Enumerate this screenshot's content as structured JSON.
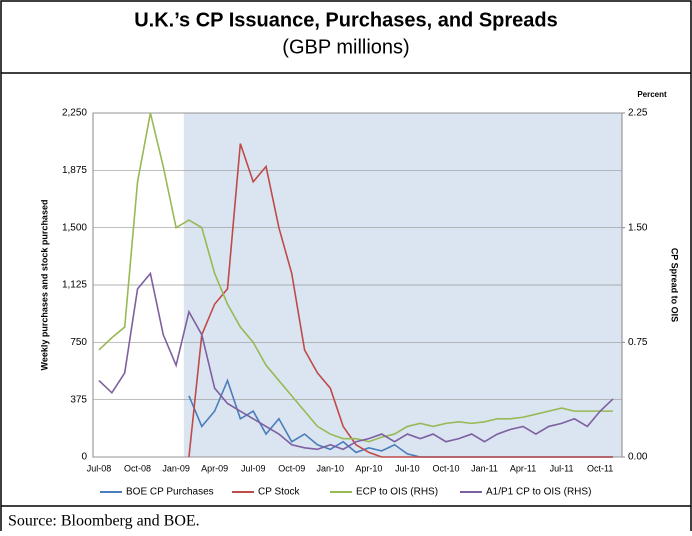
{
  "chart_data": {
    "type": "line",
    "title": "U.K.’s CP Issuance, Purchases, and Spreads",
    "subtitle": "(GBP millions)",
    "y_label": "Weekly purchases and stock purchased",
    "y2_label": "CP Spread to OIS",
    "y2_unit": "Percent",
    "source": "Source: Bloomberg and BOE.",
    "categories": [
      "Jul-08",
      null,
      null,
      "Oct-08",
      null,
      null,
      "Jan-09",
      null,
      null,
      "Apr-09",
      null,
      null,
      "Jul-09",
      null,
      null,
      "Oct-09",
      null,
      null,
      "Jan-10",
      null,
      null,
      "Apr-10",
      null,
      null,
      "Jul-10",
      null,
      null,
      "Oct-10",
      null,
      null,
      "Jan-11",
      null,
      null,
      "Apr-11",
      null,
      null,
      "Jul-11",
      null,
      null,
      "Oct-11",
      null
    ],
    "ylim": [
      0,
      2250
    ],
    "yticks": [
      0,
      375,
      750,
      {
        "value": 1125,
        "label": "1,125"
      },
      {
        "value": 1500,
        "label": "1,500"
      },
      {
        "value": 1875,
        "label": "1,875"
      },
      {
        "value": 2250,
        "label": "2,250"
      }
    ],
    "y2lim": [
      0,
      2.25
    ],
    "y2ticks": [
      {
        "value": 0,
        "label": "0.00"
      },
      {
        "value": 0.75,
        "label": "0.75"
      },
      {
        "value": 1.5,
        "label": "1.50"
      },
      {
        "value": 2.25,
        "label": "2.25"
      }
    ],
    "legend": "bottom",
    "series": [
      {
        "name": "BOE CP Purchases",
        "color": "#4a7ebb",
        "values": [
          null,
          null,
          null,
          null,
          null,
          null,
          null,
          400,
          200,
          300,
          500,
          250,
          300,
          150,
          250,
          100,
          150,
          80,
          50,
          100,
          30,
          60,
          40,
          80,
          20,
          0,
          0,
          0,
          0,
          0,
          0,
          0,
          0,
          0,
          0,
          0,
          0,
          0,
          0,
          0,
          0
        ]
      },
      {
        "name": "CP Stock",
        "color": "#be4b48",
        "values": [
          null,
          null,
          null,
          null,
          null,
          null,
          null,
          0,
          800,
          1000,
          1100,
          2050,
          1800,
          1900,
          1500,
          1200,
          700,
          550,
          450,
          200,
          80,
          30,
          0,
          0,
          0,
          0,
          0,
          0,
          0,
          0,
          0,
          0,
          0,
          0,
          0,
          0,
          0,
          0,
          0,
          0,
          0
        ]
      },
      {
        "name": "ECP to OIS (RHS)",
        "color": "#98b954",
        "axis": "y2",
        "values": [
          0.7,
          0.78,
          0.85,
          1.8,
          2.25,
          1.9,
          1.5,
          1.55,
          1.5,
          1.2,
          1.0,
          0.85,
          0.75,
          0.6,
          0.5,
          0.4,
          0.3,
          0.2,
          0.15,
          0.12,
          0.12,
          0.1,
          0.13,
          0.15,
          0.2,
          0.22,
          0.2,
          0.22,
          0.23,
          0.22,
          0.23,
          0.25,
          0.25,
          0.26,
          0.28,
          0.3,
          0.32,
          0.3,
          0.3,
          0.3,
          0.3
        ]
      },
      {
        "name": "A1/P1 CP to OIS (RHS)",
        "color": "#7d60a0",
        "axis": "y2",
        "values": [
          0.5,
          0.42,
          0.55,
          1.1,
          1.2,
          0.8,
          0.6,
          0.95,
          0.8,
          0.45,
          0.35,
          0.3,
          0.25,
          0.2,
          0.15,
          0.08,
          0.06,
          0.05,
          0.08,
          0.05,
          0.1,
          0.12,
          0.15,
          0.1,
          0.15,
          0.12,
          0.15,
          0.1,
          0.12,
          0.15,
          0.1,
          0.15,
          0.18,
          0.2,
          0.15,
          0.2,
          0.22,
          0.25,
          0.2,
          0.3,
          0.38
        ]
      }
    ]
  }
}
